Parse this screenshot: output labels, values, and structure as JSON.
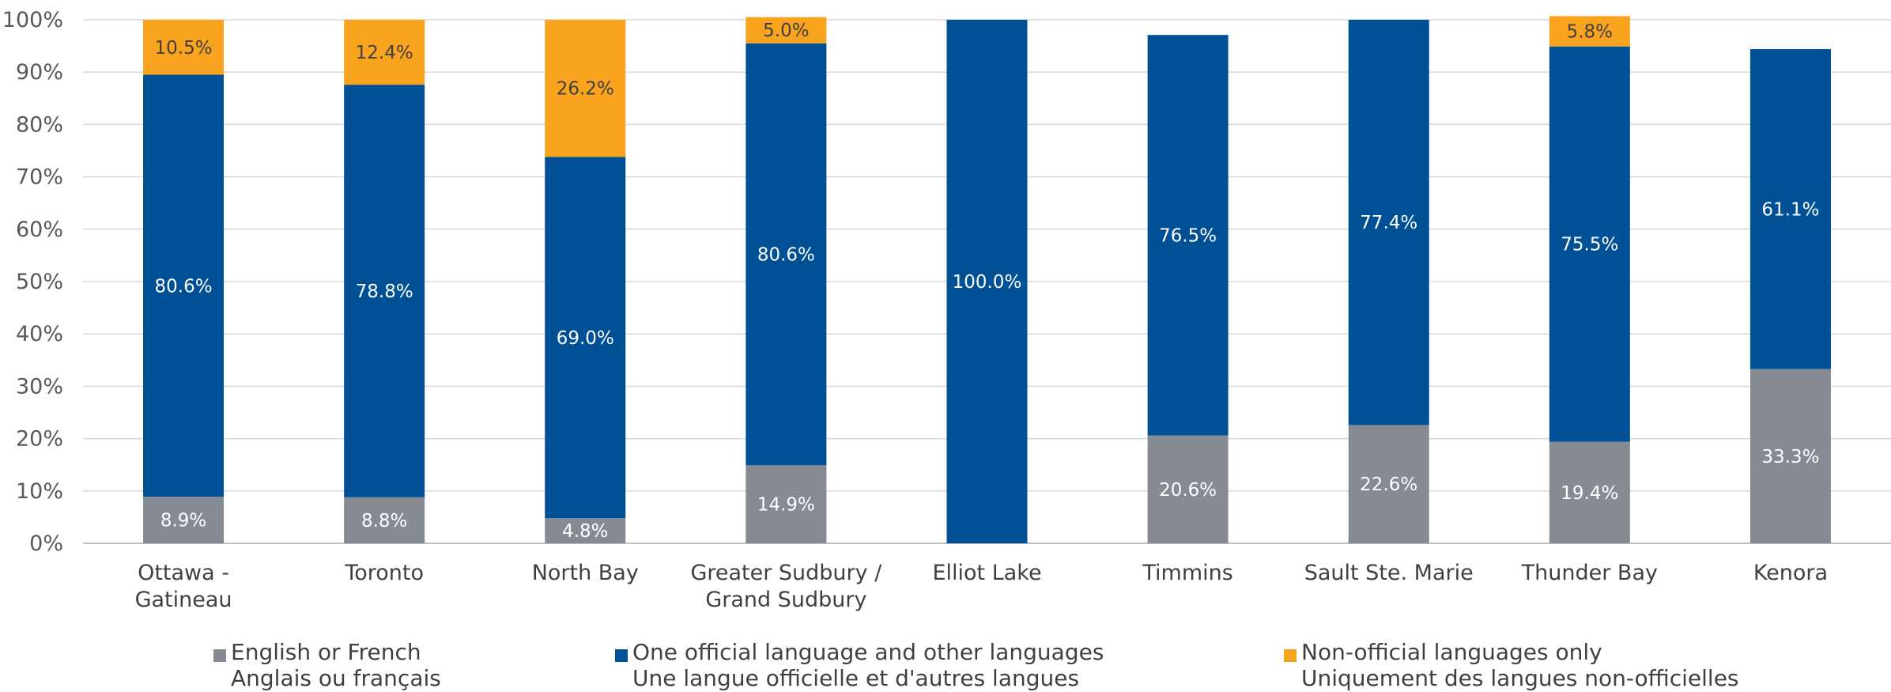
{
  "chart_data": {
    "type": "bar",
    "stacked": true,
    "categories": [
      [
        "Ottawa -",
        "Gatineau"
      ],
      [
        "Toronto"
      ],
      [
        "North Bay"
      ],
      [
        "Greater Sudbury /",
        "Grand Sudbury"
      ],
      [
        "Elliot Lake"
      ],
      [
        "Timmins"
      ],
      [
        "Sault Ste. Marie"
      ],
      [
        "Thunder Bay"
      ],
      [
        "Kenora"
      ]
    ],
    "series": [
      {
        "name": "English or French",
        "name_fr": "Anglais ou français",
        "color": "#868b93",
        "values": [
          8.9,
          8.8,
          4.8,
          14.9,
          0,
          20.6,
          22.6,
          19.4,
          33.3
        ],
        "labels": [
          "8.9%",
          "8.8%",
          "4.8%",
          "14.9%",
          "",
          "20.6%",
          "22.6%",
          "19.4%",
          "33.3%"
        ]
      },
      {
        "name": "One official language and other languages",
        "name_fr": "Une langue officielle et d'autres langues",
        "color": "#005096",
        "values": [
          80.6,
          78.8,
          69.0,
          80.6,
          100.0,
          76.5,
          77.4,
          75.5,
          61.1
        ],
        "labels": [
          "80.6%",
          "78.8%",
          "69.0%",
          "80.6%",
          "100.0%",
          "76.5%",
          "77.4%",
          "75.5%",
          "61.1%"
        ]
      },
      {
        "name": "Non-official languages only",
        "name_fr": "Uniquement des langues non-officielles",
        "color": "#f9a31e",
        "values": [
          10.5,
          12.4,
          26.2,
          5.0,
          0,
          0,
          0,
          5.8,
          0
        ],
        "labels": [
          "10.5%",
          "12.4%",
          "26.2%",
          "5.0%",
          "",
          "",
          "",
          "5.8%",
          ""
        ]
      }
    ],
    "y_ticks": [
      "0%",
      "10%",
      "20%",
      "30%",
      "40%",
      "50%",
      "60%",
      "70%",
      "80%",
      "90%",
      "100%"
    ],
    "ylim": [
      0,
      100
    ],
    "grid": true,
    "legend_position": "bottom"
  }
}
